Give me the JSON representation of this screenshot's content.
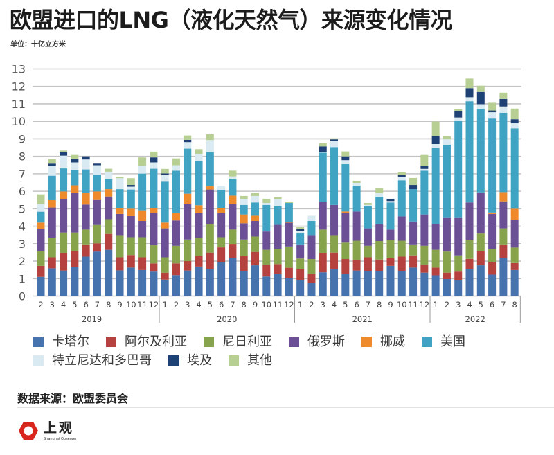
{
  "header": {
    "title": "欧盟进口的LNG（液化天然气）来源变化情况",
    "unit": "单位：十亿立方米"
  },
  "chart_data": {
    "type": "bar",
    "stacked": true,
    "title": "欧盟进口的LNG（液化天然气）来源变化情况",
    "xlabel": "",
    "ylabel": "单位：十亿立方米",
    "ylim": [
      0,
      13
    ],
    "yticks": [
      0,
      1,
      2,
      3,
      4,
      5,
      6,
      7,
      8,
      9,
      10,
      11,
      12,
      13
    ],
    "grid": true,
    "legend_position": "bottom",
    "x_groups": [
      {
        "year": "2019",
        "months": [
          "2",
          "3",
          "4",
          "5",
          "6",
          "7",
          "8",
          "9",
          "10",
          "11",
          "12"
        ]
      },
      {
        "year": "2020",
        "months": [
          "1",
          "2",
          "3",
          "4",
          "5",
          "6",
          "7",
          "8",
          "9",
          "10",
          "11",
          "12"
        ]
      },
      {
        "year": "2021",
        "months": [
          "1",
          "2",
          "3",
          "4",
          "5",
          "6",
          "7",
          "8",
          "9",
          "10",
          "11",
          "12"
        ]
      },
      {
        "year": "2022",
        "months": [
          "1",
          "2",
          "3",
          "4",
          "5",
          "6",
          "7",
          "8"
        ]
      }
    ],
    "series": [
      {
        "name": "卡塔尔",
        "color": "#4672ad",
        "values": [
          1.1,
          1.59,
          1.46,
          1.67,
          2.26,
          2.55,
          2.65,
          1.47,
          1.63,
          1.49,
          1.4,
          0.94,
          1.2,
          1.46,
          1.69,
          1.56,
          1.96,
          2.18,
          1.43,
          1.76,
          1.12,
          1.28,
          1.02,
          0.92,
          0.77,
          1.36,
          1.56,
          1.26,
          1.46,
          1.43,
          1.43,
          1.73,
          1.43,
          1.63,
          1.34,
          1.19,
          0.97,
          0.9,
          1.56,
          1.76,
          1.23,
          2.18,
          1.49
        ]
      },
      {
        "name": "阿尔及利亚",
        "color": "#b6423f",
        "values": [
          0.63,
          0.63,
          1.0,
          0.91,
          0.66,
          0.47,
          0.91,
          0.75,
          0.72,
          0.73,
          0.47,
          0.4,
          0.67,
          0.54,
          0.6,
          0.93,
          0.83,
          0.77,
          0.86,
          0.77,
          0.68,
          0.55,
          0.6,
          0.62,
          0.5,
          1.09,
          0.93,
          0.86,
          0.59,
          0.79,
          0.66,
          0.43,
          0.83,
          0.7,
          0.46,
          0.44,
          0.37,
          0.5,
          0.57,
          0.82,
          0.73,
          0.74,
          0.4
        ]
      },
      {
        "name": "尼日利亚",
        "color": "#87a34b",
        "values": [
          0.84,
          1.13,
          1.18,
          1.06,
          0.89,
          1.05,
          0.84,
          1.23,
          1.02,
          1.15,
          1.04,
          0.88,
          1.01,
          1.24,
          1.03,
          1.62,
          0.58,
          0.86,
          0.95,
          0.88,
          0.85,
          0.88,
          1.22,
          0.61,
          0.85,
          1.36,
          0.96,
          0.94,
          1.12,
          0.66,
          1.06,
          1.05,
          0.91,
          0.59,
          1.08,
          1.02,
          1.21,
          0.93,
          1.06,
          1.0,
          0.73,
          0.96,
          0.89
        ]
      },
      {
        "name": "俄罗斯",
        "color": "#6c5096",
        "values": [
          1.29,
          1.72,
          1.92,
          2.27,
          1.43,
          1.43,
          1.3,
          1.25,
          1.21,
          0.93,
          1.85,
          1.66,
          1.45,
          2.02,
          1.42,
          1.99,
          1.37,
          1.45,
          0.93,
          0.89,
          1.05,
          1.37,
          1.36,
          0.77,
          1.33,
          1.59,
          1.77,
          1.7,
          1.67,
          1.0,
          0.96,
          0.6,
          1.39,
          1.35,
          1.79,
          1.49,
          1.92,
          2.14,
          2.17,
          2.31,
          2.01,
          1.54,
          1.59
        ]
      },
      {
        "name": "挪威",
        "color": "#ee8a2c",
        "values": [
          0.35,
          0.42,
          0.43,
          0.43,
          0.66,
          0.49,
          0.42,
          0.34,
          0.42,
          0.61,
          0.28,
          0.33,
          0.41,
          0.6,
          0.46,
          0.18,
          0.3,
          0.49,
          0.5,
          0.3,
          0,
          0,
          0.03,
          0,
          0,
          0,
          0,
          0.08,
          0,
          0,
          0,
          0,
          0,
          0,
          0,
          0,
          0,
          0,
          0,
          0.04,
          0.08,
          0.53,
          0.63
        ]
      },
      {
        "name": "美国",
        "color": "#41a3c3",
        "values": [
          0.62,
          1.4,
          1.32,
          0.88,
          1.35,
          0.95,
          0.57,
          1.08,
          1.1,
          2.1,
          2.25,
          2.34,
          2.44,
          2.58,
          2.55,
          1.96,
          1.04,
          0.93,
          0.55,
          0.76,
          1.52,
          1.06,
          1.1,
          0.67,
          0.85,
          2.81,
          3.31,
          2.71,
          1.48,
          1.28,
          1.58,
          1.55,
          2.07,
          1.85,
          2.51,
          4.34,
          4.19,
          5.56,
          5.79,
          4.78,
          5.38,
          4.54,
          4.6
        ]
      },
      {
        "name": "特立尼达和多巴哥",
        "color": "#d9eaf2",
        "values": [
          0.43,
          0.56,
          0.73,
          0.43,
          0.57,
          0.55,
          0.43,
          0.63,
          0.16,
          0.44,
          0.36,
          0.39,
          0.31,
          0.37,
          0.38,
          0.69,
          0.24,
          0.17,
          0.35,
          0.37,
          0.11,
          0.39,
          0,
          0.15,
          0.3,
          0.03,
          0.35,
          0.23,
          0.16,
          0.06,
          0.21,
          0.08,
          0.18,
          0,
          0.1,
          0.22,
          0.31,
          0.19,
          0.23,
          0.27,
          0.36,
          0.36,
          0.29
        ]
      },
      {
        "name": "埃及",
        "color": "#1f4276",
        "values": [
          0,
          0.13,
          0.2,
          0.19,
          0.18,
          0.09,
          0,
          0,
          0.1,
          0,
          0.29,
          0.08,
          0,
          0.13,
          0,
          0,
          0,
          0,
          0,
          0,
          0,
          0,
          0,
          0.1,
          0,
          0.33,
          0.09,
          0.22,
          0,
          0,
          0,
          0.13,
          0.11,
          0.24,
          0.17,
          0.47,
          0,
          0.38,
          0.52,
          0.7,
          0.1,
          0.43,
          0.23
        ]
      },
      {
        "name": "其他",
        "color": "#b8cf93",
        "values": [
          0.56,
          0.26,
          0.09,
          0.24,
          0,
          0,
          0.17,
          0.06,
          0.39,
          0.49,
          0.33,
          0.26,
          0.39,
          0.25,
          0.28,
          0.33,
          0,
          0.33,
          0.16,
          0.17,
          0.24,
          0.13,
          0.05,
          0.1,
          0,
          0.17,
          0.06,
          0.28,
          0.11,
          0.11,
          0.26,
          0,
          0.16,
          0.4,
          0.63,
          0.82,
          0.17,
          0.09,
          0.55,
          0.36,
          0.44,
          0.36,
          0.61
        ]
      }
    ]
  },
  "source": {
    "text": "数据来源：欧盟委员会"
  },
  "logo": {
    "name_cn": "上观",
    "name_en": "Shanghai Observer",
    "color": "#d9261c"
  }
}
